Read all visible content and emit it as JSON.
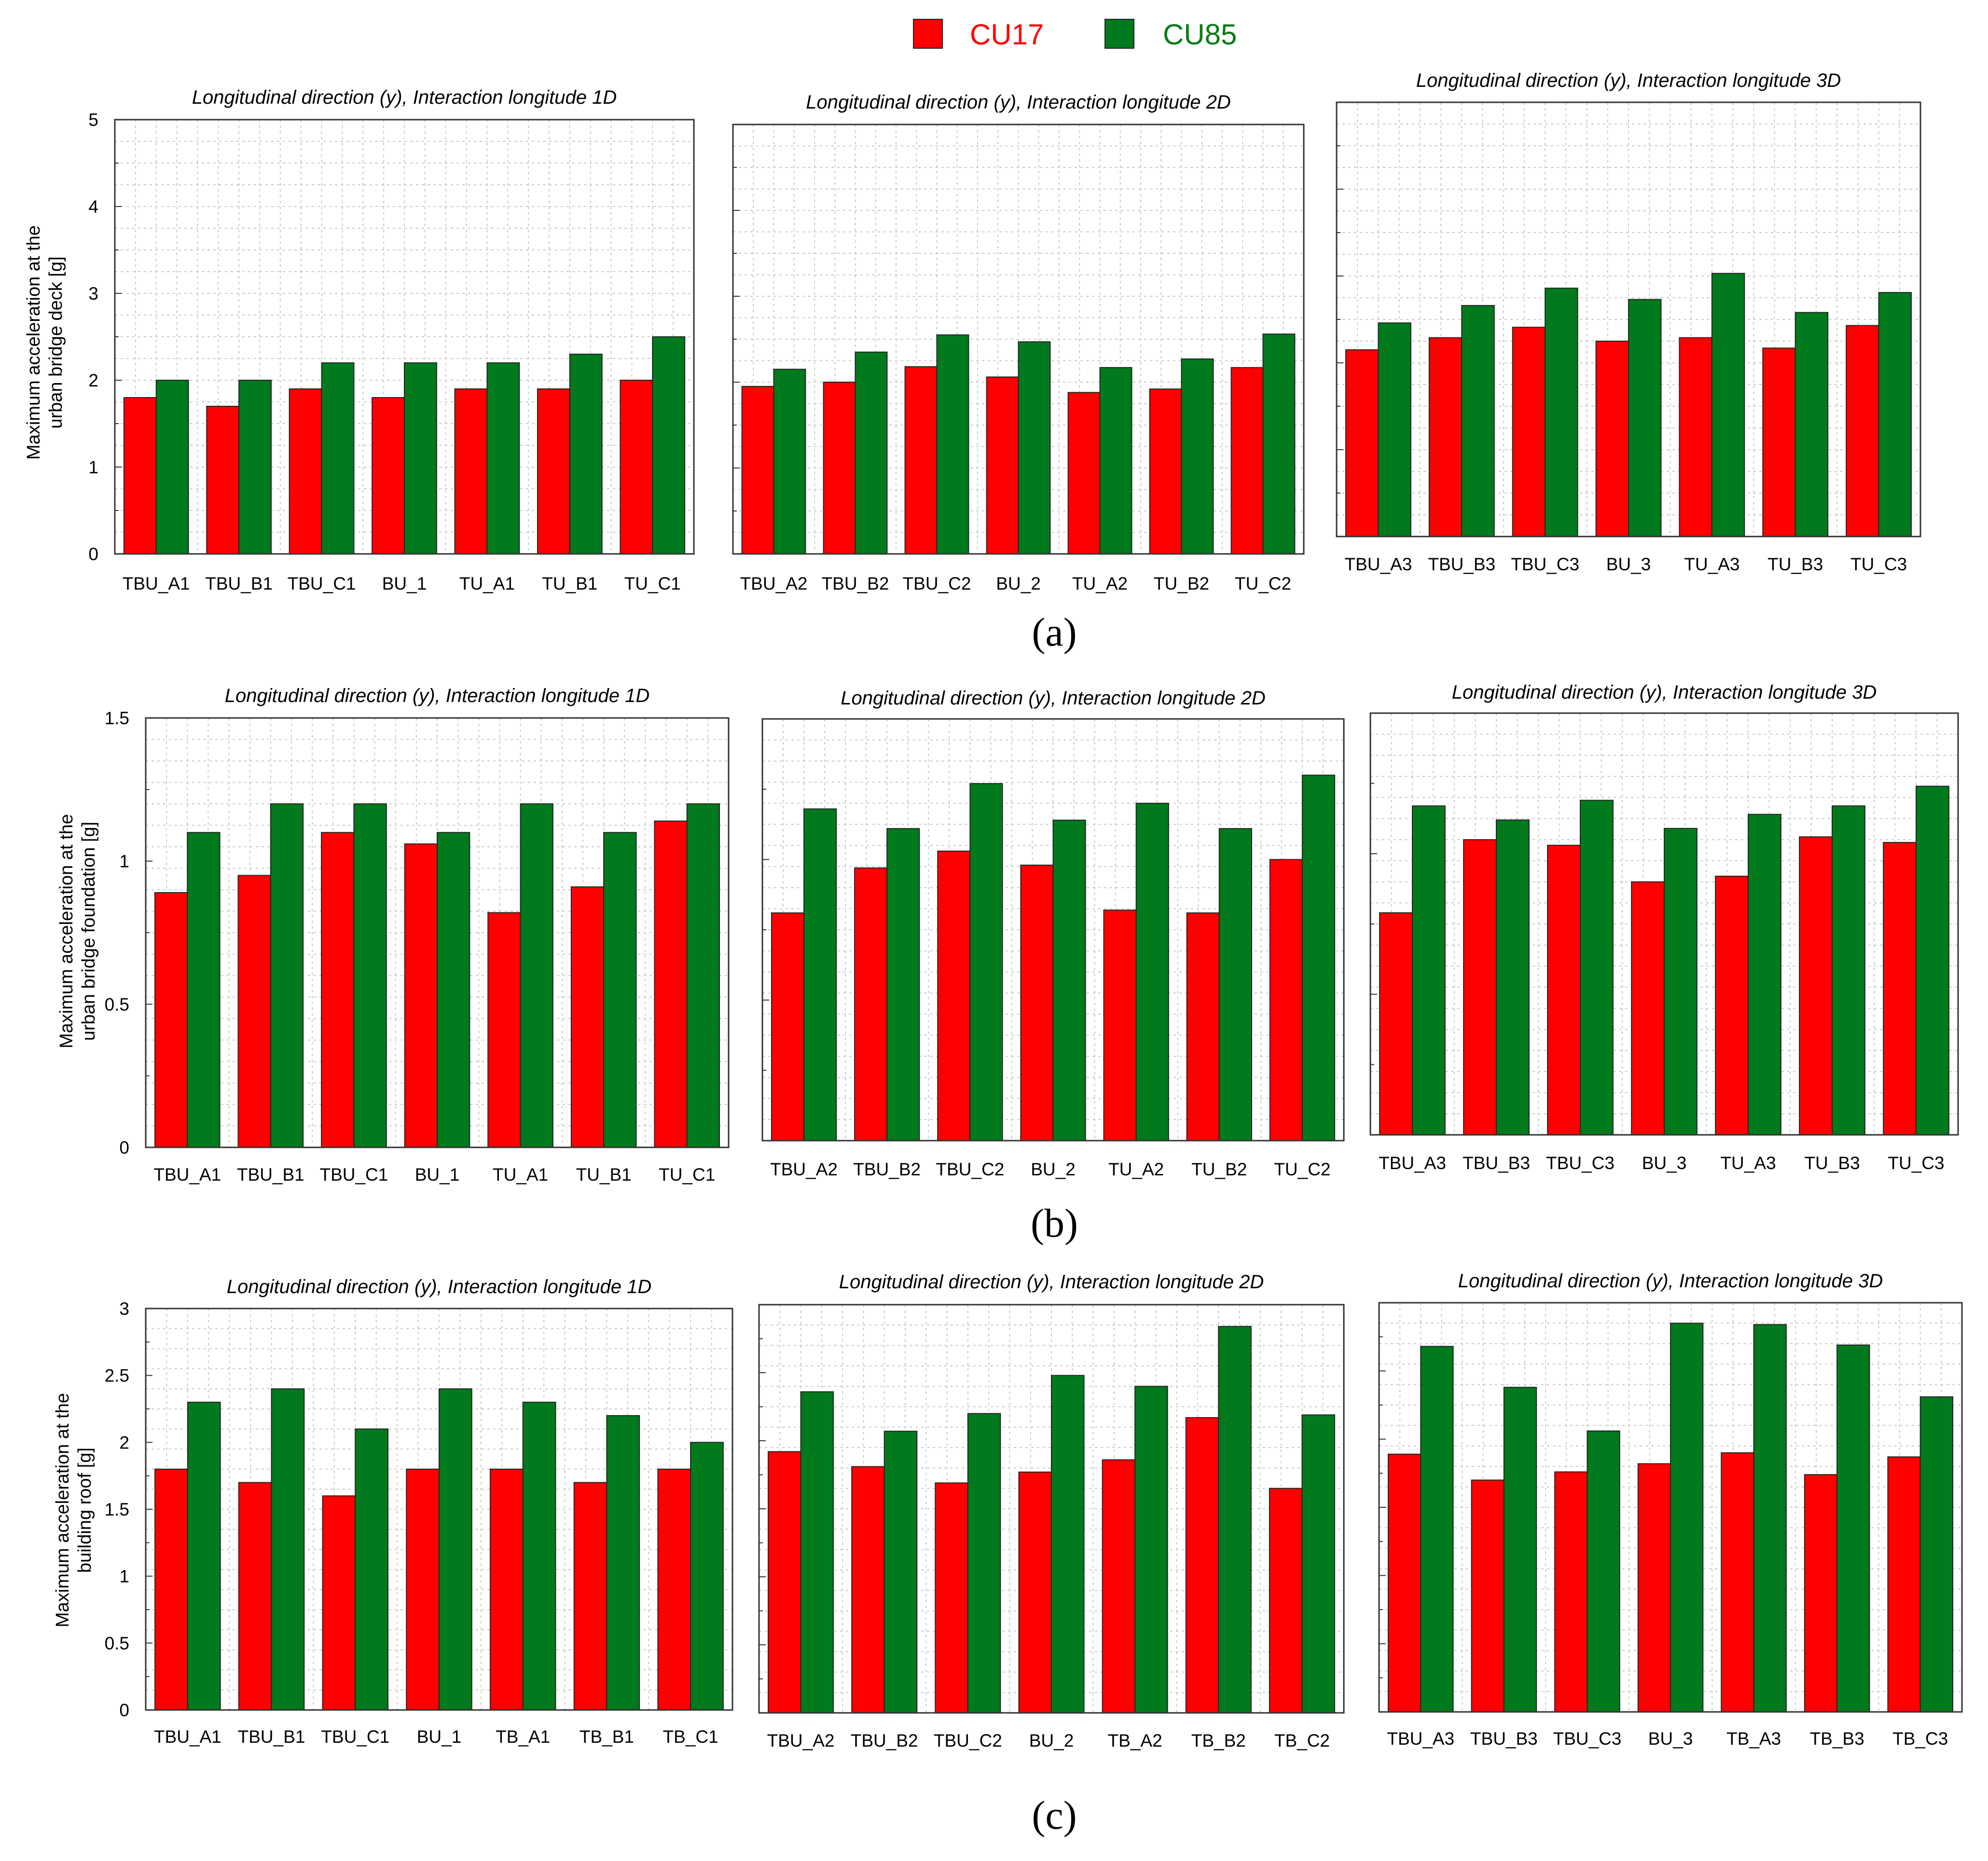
{
  "legend": [
    {
      "label": "CU17",
      "color": "#ff0000"
    },
    {
      "label": "CU85",
      "color": "#007a1c"
    }
  ],
  "colors": {
    "cu17": "#ff0000",
    "cu85": "#007a1c",
    "cu17_text": "#ff0000",
    "cu85_text": "#0c7a17"
  },
  "rows": [
    {
      "panel_label": "(a)",
      "ylabel_lines": [
        "Maximum acceleration at the",
        "urban bridge deck [g]"
      ]
    },
    {
      "panel_label": "(b)",
      "ylabel_lines": [
        "Maximum acceleration at the",
        "urban bridge foundation [g]"
      ]
    },
    {
      "panel_label": "(c)",
      "ylabel_lines": [
        "Maximum acceleration at the",
        "building roof [g]"
      ]
    }
  ],
  "chart_data": [
    {
      "type": "bar",
      "row": 0,
      "col": 0,
      "title": "Longitudinal direction (y), Interaction longitude 1D",
      "categories": [
        "TBU_A1",
        "TBU_B1",
        "TBU_C1",
        "BU_1",
        "TU_A1",
        "TU_B1",
        "TU_C1"
      ],
      "series": [
        {
          "name": "CU17",
          "values": [
            1.8,
            1.7,
            1.9,
            1.8,
            1.9,
            1.9,
            2.0
          ]
        },
        {
          "name": "CU85",
          "values": [
            2.0,
            2.0,
            2.2,
            2.2,
            2.2,
            2.3,
            2.5
          ]
        }
      ],
      "ylim": [
        0,
        5
      ],
      "yticks": [
        "0",
        "1",
        "2",
        "3",
        "4",
        "5"
      ],
      "ylabel": "Maximum acceleration at the urban bridge deck [g]",
      "grid": true
    },
    {
      "type": "bar",
      "row": 0,
      "col": 1,
      "title": "Longitudinal direction (y), Interaction longitude 2D",
      "categories": [
        "TBU_A2",
        "TBU_B2",
        "TBU_C2",
        "BU_2",
        "TU_A2",
        "TU_B2",
        "TU_C2"
      ],
      "series": [
        {
          "name": "CU17",
          "values": [
            1.95,
            2.0,
            2.18,
            2.06,
            1.88,
            1.92,
            2.17
          ]
        },
        {
          "name": "CU85",
          "values": [
            2.15,
            2.35,
            2.55,
            2.47,
            2.17,
            2.27,
            2.56
          ]
        }
      ],
      "ylim": [
        0,
        5
      ],
      "yticks": [],
      "grid": true
    },
    {
      "type": "bar",
      "row": 0,
      "col": 2,
      "title": "Longitudinal direction (y), Interaction longitude 3D",
      "categories": [
        "TBU_A3",
        "TBU_B3",
        "TBU_C3",
        "BU_3",
        "TU_A3",
        "TU_B3",
        "TU_C3"
      ],
      "series": [
        {
          "name": "CU17",
          "values": [
            2.15,
            2.29,
            2.41,
            2.25,
            2.29,
            2.17,
            2.43
          ]
        },
        {
          "name": "CU85",
          "values": [
            2.46,
            2.66,
            2.86,
            2.73,
            3.03,
            2.58,
            2.81
          ]
        }
      ],
      "ylim": [
        0,
        5
      ],
      "yticks": [],
      "grid": true
    },
    {
      "type": "bar",
      "row": 1,
      "col": 0,
      "title": "Longitudinal direction (y), Interaction longitude 1D",
      "categories": [
        "TBU_A1",
        "TBU_B1",
        "TBU_C1",
        "BU_1",
        "TU_A1",
        "TU_B1",
        "TU_C1"
      ],
      "series": [
        {
          "name": "CU17",
          "values": [
            0.89,
            0.95,
            1.1,
            1.06,
            0.82,
            0.91,
            1.14
          ]
        },
        {
          "name": "CU85",
          "values": [
            1.1,
            1.2,
            1.2,
            1.1,
            1.2,
            1.1,
            1.2
          ]
        }
      ],
      "ylim": [
        0,
        1.5
      ],
      "yticks": [
        "0",
        "0.5",
        "1",
        "1.5"
      ],
      "ylabel": "Maximum acceleration at the urban bridge foundation [g]",
      "grid": true
    },
    {
      "type": "bar",
      "row": 1,
      "col": 1,
      "title": "Longitudinal direction (y), Interaction longitude 2D",
      "categories": [
        "TBU_A2",
        "TBU_B2",
        "TBU_C2",
        "BU_2",
        "TU_A2",
        "TU_B2",
        "TU_C2"
      ],
      "series": [
        {
          "name": "CU17",
          "values": [
            0.81,
            0.97,
            1.03,
            0.98,
            0.82,
            0.81,
            1.0
          ]
        },
        {
          "name": "CU85",
          "values": [
            1.18,
            1.11,
            1.27,
            1.14,
            1.2,
            1.11,
            1.3
          ]
        }
      ],
      "ylim": [
        0,
        1.5
      ],
      "yticks": [],
      "grid": true
    },
    {
      "type": "bar",
      "row": 1,
      "col": 2,
      "title": "Longitudinal direction (y), Interaction longitude 3D",
      "categories": [
        "TBU_A3",
        "TBU_B3",
        "TBU_C3",
        "BU_3",
        "TU_A3",
        "TU_B3",
        "TU_C3"
      ],
      "series": [
        {
          "name": "CU17",
          "values": [
            0.79,
            1.05,
            1.03,
            0.9,
            0.92,
            1.06,
            1.04
          ]
        },
        {
          "name": "CU85",
          "values": [
            1.17,
            1.12,
            1.19,
            1.09,
            1.14,
            1.17,
            1.24
          ]
        }
      ],
      "ylim": [
        0,
        1.5
      ],
      "yticks": [],
      "grid": true
    },
    {
      "type": "bar",
      "row": 2,
      "col": 0,
      "title": "Longitudinal direction (y), Interaction longitude 1D",
      "categories": [
        "TBU_A1",
        "TBU_B1",
        "TBU_C1",
        "BU_1",
        "TB_A1",
        "TB_B1",
        "TB_C1"
      ],
      "series": [
        {
          "name": "CU17",
          "values": [
            1.8,
            1.7,
            1.6,
            1.8,
            1.8,
            1.7,
            1.8
          ]
        },
        {
          "name": "CU85",
          "values": [
            2.3,
            2.4,
            2.1,
            2.4,
            2.3,
            2.2,
            2.0
          ]
        }
      ],
      "ylim": [
        0,
        3
      ],
      "yticks": [
        "0",
        "0.5",
        "1",
        "1.5",
        "2",
        "2.5",
        "3"
      ],
      "ylabel": "Maximum acceleration at the building roof [g]",
      "grid": true
    },
    {
      "type": "bar",
      "row": 2,
      "col": 1,
      "title": "Longitudinal direction (y), Interaction longitude 2D",
      "categories": [
        "TBU_A2",
        "TBU_B2",
        "TBU_C2",
        "BU_2",
        "TB_A2",
        "TB_B2",
        "TB_C2"
      ],
      "series": [
        {
          "name": "CU17",
          "values": [
            1.92,
            1.81,
            1.69,
            1.77,
            1.86,
            2.17,
            1.65
          ]
        },
        {
          "name": "CU85",
          "values": [
            2.36,
            2.07,
            2.2,
            2.48,
            2.4,
            2.84,
            2.19
          ]
        }
      ],
      "ylim": [
        0,
        3
      ],
      "yticks": [],
      "grid": true
    },
    {
      "type": "bar",
      "row": 2,
      "col": 2,
      "title": "Longitudinal direction (y), Interaction longitude 3D",
      "categories": [
        "TBU_A3",
        "TBU_B3",
        "TBU_C3",
        "BU_3",
        "TB_A3",
        "TB_B3",
        "TB_C3"
      ],
      "series": [
        {
          "name": "CU17",
          "values": [
            1.89,
            1.7,
            1.76,
            1.82,
            1.9,
            1.74,
            1.87
          ]
        },
        {
          "name": "CU85",
          "values": [
            2.68,
            2.38,
            2.06,
            2.85,
            2.84,
            2.69,
            2.31
          ]
        }
      ],
      "ylim": [
        0,
        3
      ],
      "yticks": [],
      "grid": true
    }
  ]
}
